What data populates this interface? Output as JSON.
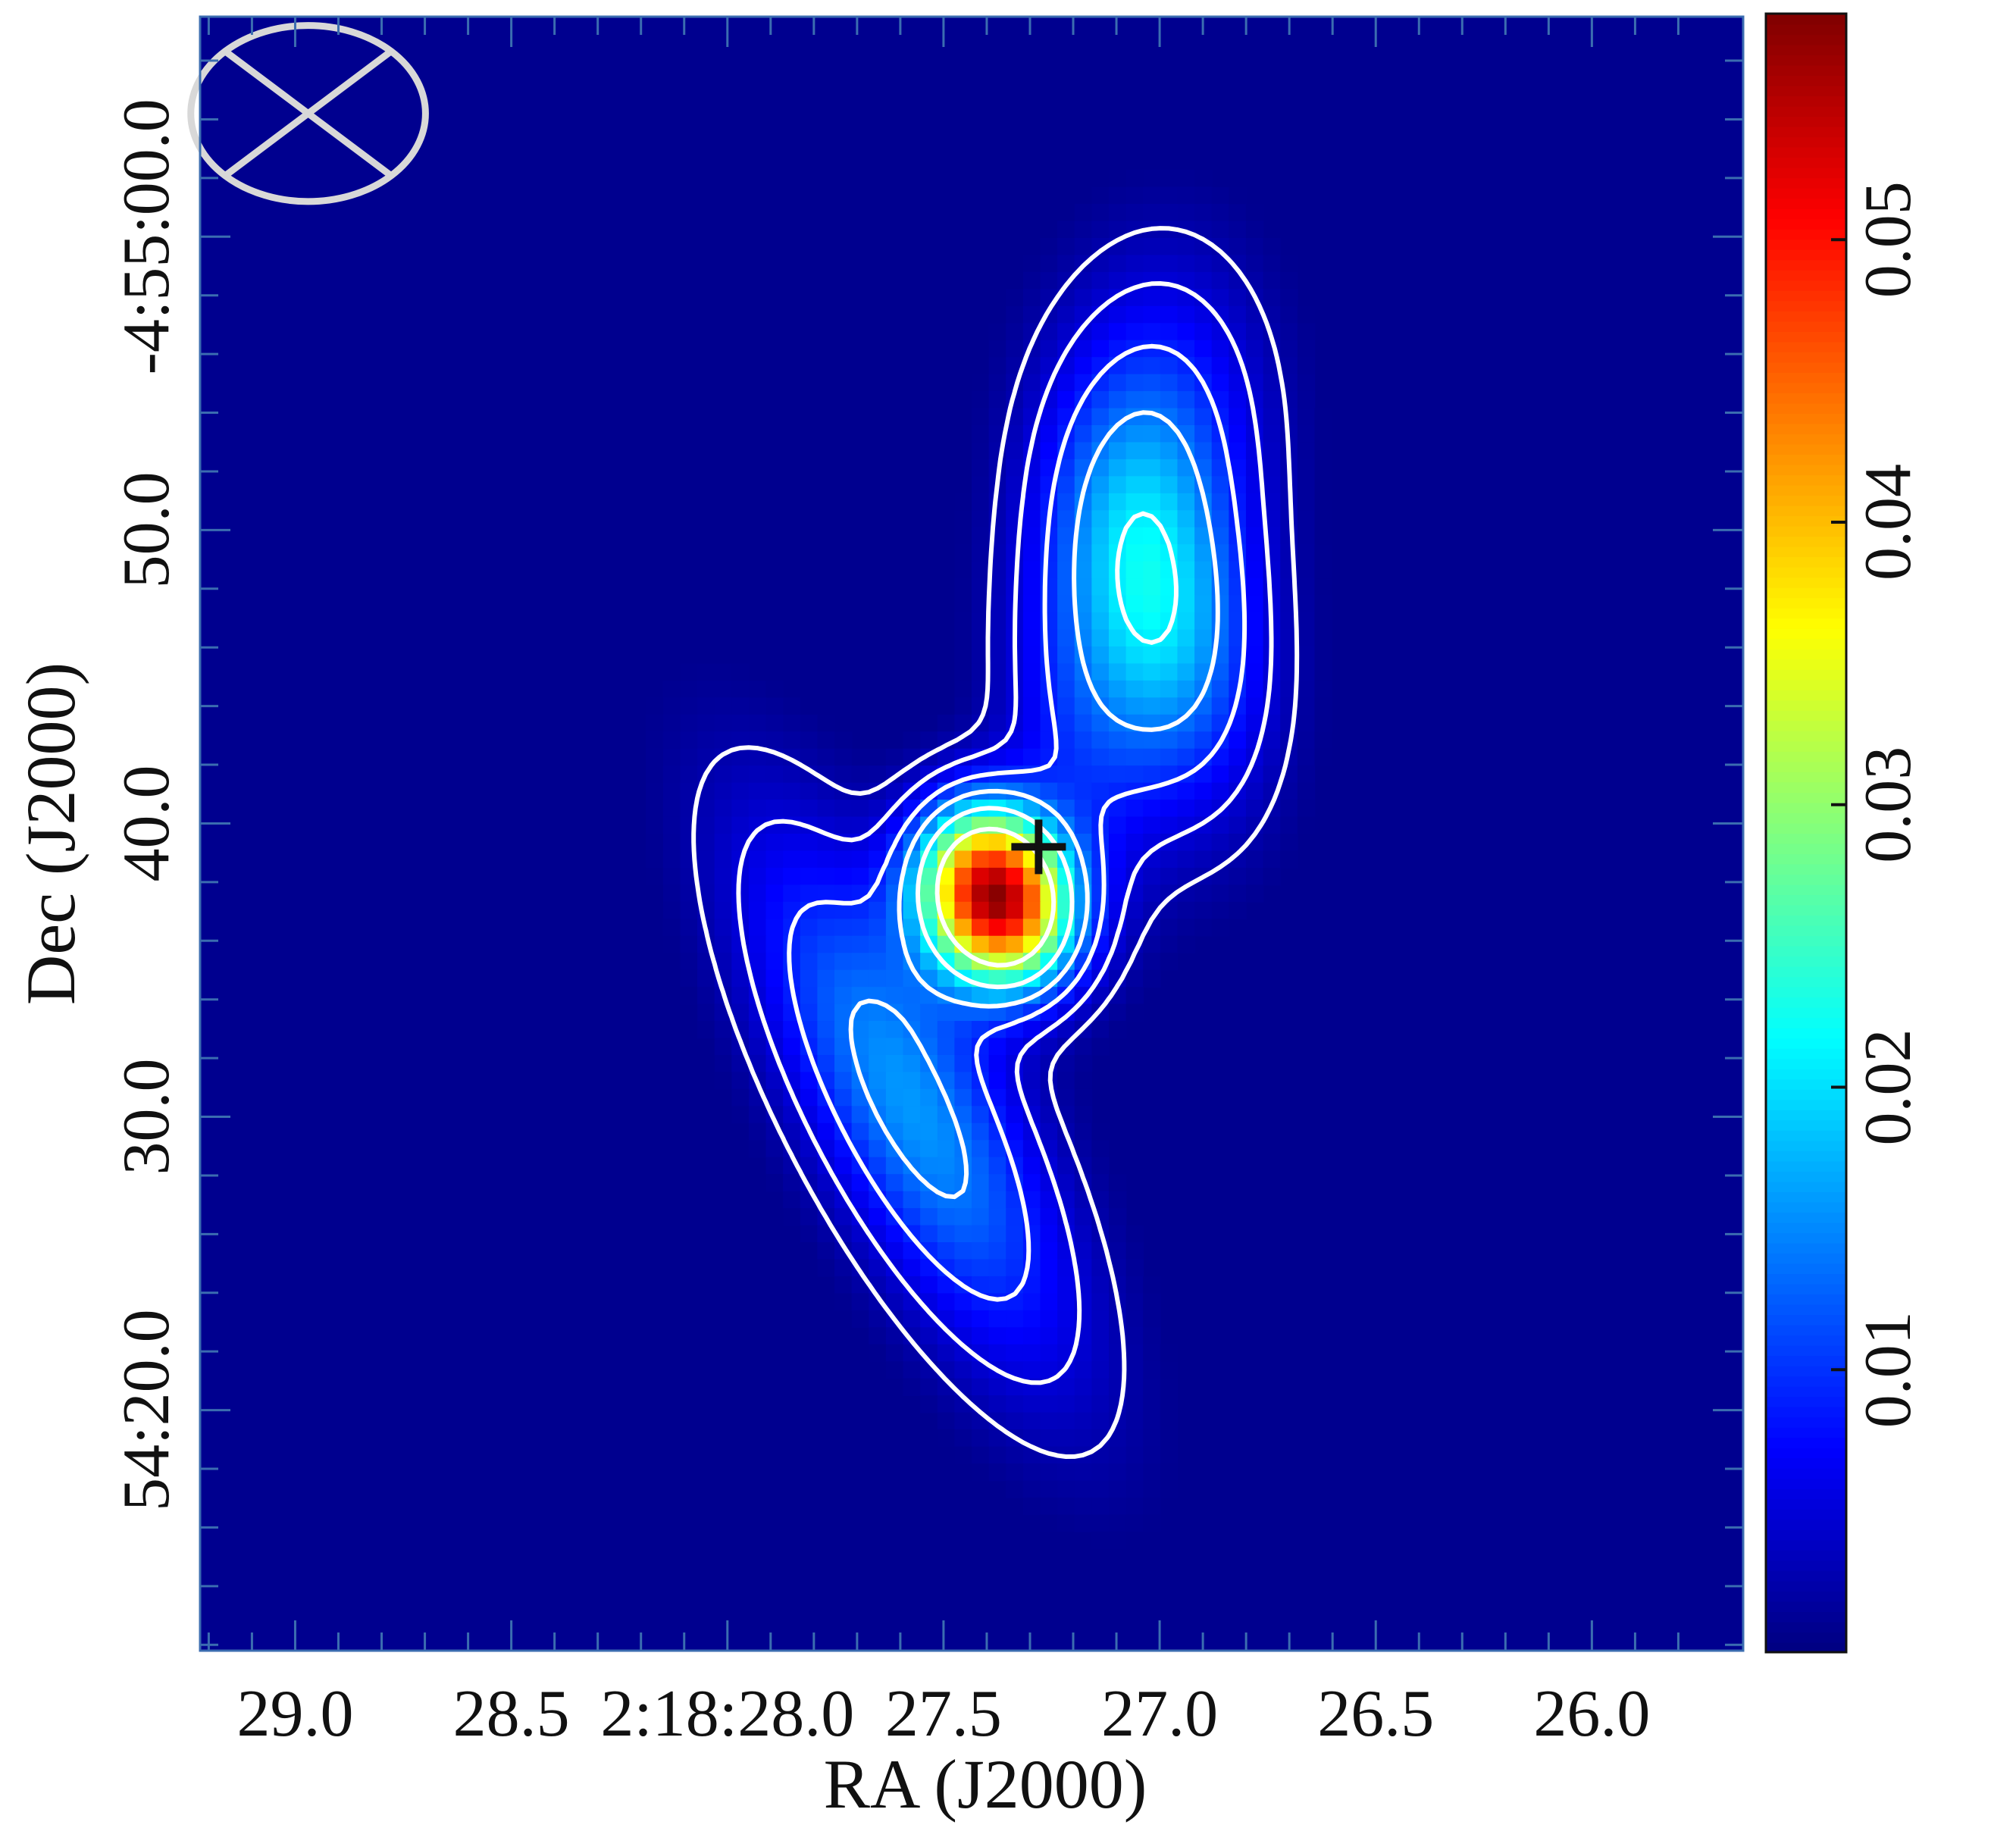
{
  "chart_data": {
    "type": "heatmap",
    "title": "",
    "xlabel": "RA (J2000)",
    "ylabel": "Dec (J2000)",
    "x_tick_labels": [
      "29.0",
      "28.5",
      "2:18:28.0",
      "27.5",
      "27.0",
      "26.5",
      "26.0"
    ],
    "x_tick_values": [
      29.0,
      28.5,
      28.0,
      27.5,
      27.0,
      26.5,
      26.0
    ],
    "x_unit": "seconds of RA (2:18:xx.x)",
    "xlim": [
      29.22,
      25.65
    ],
    "y_tick_labels": [
      "54:20.0",
      "30.0",
      "40.0",
      "50.0",
      "-4:55:00.0"
    ],
    "y_tick_values": [
      20.0,
      30.0,
      40.0,
      50.0,
      60.0
    ],
    "y_unit": "arcsec south of -4:54:00",
    "ylim": [
      67.5,
      11.8
    ],
    "colorbar": {
      "colormap": "jet",
      "range": [
        0.0,
        0.058
      ],
      "tick_labels": [
        "0.01",
        "0.02",
        "0.03",
        "0.04",
        "0.05"
      ],
      "tick_values": [
        0.01,
        0.02,
        0.03,
        0.04,
        0.05
      ]
    },
    "sources": [
      {
        "ra_s": 27.38,
        "dec_s": 37.5,
        "peak": 0.058,
        "sigma_major_arcsec": 2.1,
        "sigma_minor_arcsec": 1.7,
        "pa_deg": 20
      },
      {
        "ra_s": 27.58,
        "dec_s": 30.5,
        "peak": 0.016,
        "sigma_major_arcsec": 7.0,
        "sigma_minor_arcsec": 2.3,
        "pa_deg": 28
      },
      {
        "ra_s": 27.02,
        "dec_s": 47.5,
        "peak": 0.02,
        "sigma_major_arcsec": 4.5,
        "sigma_minor_arcsec": 2.3,
        "pa_deg": 12
      },
      {
        "ra_s": 26.98,
        "dec_s": 54.0,
        "peak": 0.008,
        "sigma_major_arcsec": 4.0,
        "sigma_minor_arcsec": 2.5,
        "pa_deg": 0
      },
      {
        "ra_s": 27.2,
        "dec_s": 42.5,
        "peak": 0.006,
        "sigma_major_arcsec": 4.0,
        "sigma_minor_arcsec": 1.8,
        "pa_deg": 10
      }
    ],
    "contour_levels": [
      0.0025,
      0.005,
      0.009,
      0.014,
      0.021,
      0.032
    ],
    "contour_color": "#ffffff",
    "background_color": "#00008f",
    "marker": {
      "shape": "cross",
      "ra_s": 27.28,
      "dec_s": 39.2,
      "color": "#111111"
    },
    "beam": {
      "shape": "ellipse-with-cross",
      "color": "#d8d8d8",
      "ra_s": 28.97,
      "dec_s": 64.2,
      "major_arcsec": 4.0,
      "minor_arcsec": 3.0
    }
  }
}
